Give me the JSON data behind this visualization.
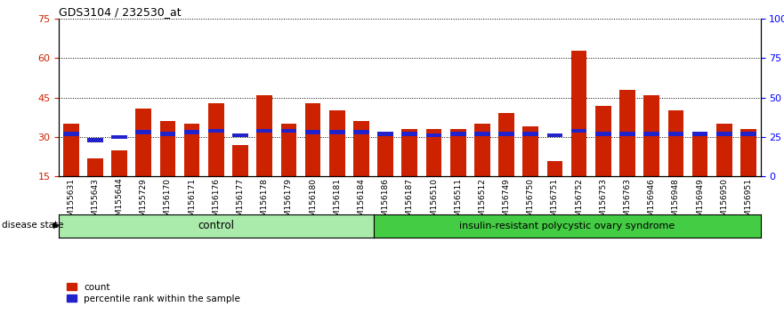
{
  "title": "GDS3104 / 232530_at",
  "samples": [
    "GSM155631",
    "GSM155643",
    "GSM155644",
    "GSM155729",
    "GSM156170",
    "GSM156171",
    "GSM156176",
    "GSM156177",
    "GSM156178",
    "GSM156179",
    "GSM156180",
    "GSM156181",
    "GSM156184",
    "GSM156186",
    "GSM156187",
    "GSM156510",
    "GSM156511",
    "GSM156512",
    "GSM156749",
    "GSM156750",
    "GSM156751",
    "GSM156752",
    "GSM156753",
    "GSM156763",
    "GSM156946",
    "GSM156948",
    "GSM156949",
    "GSM156950",
    "GSM156951"
  ],
  "counts": [
    35,
    22,
    25,
    41,
    36,
    35,
    43,
    27,
    46,
    35,
    43,
    40,
    36,
    31,
    33,
    33,
    33,
    35,
    39,
    34,
    21,
    63,
    42,
    48,
    46,
    40,
    32,
    35,
    33
  ],
  "percentile_ranks": [
    27,
    23,
    25,
    28,
    27,
    28,
    29,
    26,
    29,
    29,
    28,
    28,
    28,
    27,
    27,
    26,
    27,
    27,
    27,
    27,
    26,
    29,
    27,
    27,
    27,
    27,
    27,
    27,
    27
  ],
  "control_count": 13,
  "insulin_count": 16,
  "group_labels": [
    "control",
    "insulin-resistant polycystic ovary syndrome"
  ],
  "bar_color_red": "#CC2200",
  "bar_color_blue": "#2222CC",
  "left_yticks": [
    15,
    30,
    45,
    60,
    75
  ],
  "right_ytick_vals": [
    0,
    25,
    50,
    75,
    100
  ],
  "right_ytick_labels": [
    "0",
    "25",
    "50",
    "75",
    "100%"
  ],
  "ylim_left": [
    15,
    75
  ],
  "ylim_right": [
    0,
    100
  ],
  "bg_color": "#FFFFFF",
  "legend_count_label": "count",
  "legend_pct_label": "percentile rank within the sample",
  "disease_state_label": "disease state"
}
